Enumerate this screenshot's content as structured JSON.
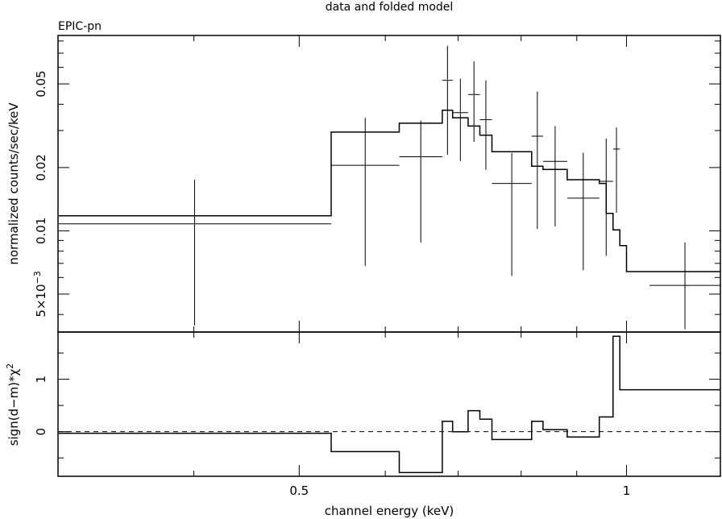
{
  "chart_data": [
    {
      "type": "scatter",
      "title": "data and folded model",
      "subtitle": "EPIC-pn",
      "ylabel": "normalized counts/sec/keV",
      "ylog": true,
      "ylim": [
        0.0033,
        0.085
      ],
      "yticks": [
        {
          "value": 0.05,
          "label": "0.05"
        },
        {
          "value": 0.02,
          "label": "0.02"
        },
        {
          "value": 0.01,
          "label": "0.01"
        },
        {
          "value": 0.005,
          "label": "5×10",
          "exp": "−3"
        }
      ],
      "data_points": [
        {
          "xlo": 0.3,
          "xhi": 0.535,
          "y": 0.0108,
          "ylo": 0.00355,
          "yhi": 0.0175
        },
        {
          "xlo": 0.535,
          "xhi": 0.618,
          "y": 0.0205,
          "ylo": 0.0068,
          "yhi": 0.0345
        },
        {
          "xlo": 0.618,
          "xhi": 0.677,
          "y": 0.0225,
          "ylo": 0.0088,
          "yhi": 0.0335
        },
        {
          "xlo": 0.677,
          "xhi": 0.692,
          "y": 0.052,
          "ylo": 0.023,
          "yhi": 0.076
        },
        {
          "xlo": 0.692,
          "xhi": 0.715,
          "y": 0.0365,
          "ylo": 0.0215,
          "yhi": 0.053
        },
        {
          "xlo": 0.715,
          "xhi": 0.733,
          "y": 0.0445,
          "ylo": 0.0265,
          "yhi": 0.064
        },
        {
          "xlo": 0.733,
          "xhi": 0.752,
          "y": 0.0338,
          "ylo": 0.0195,
          "yhi": 0.052
        },
        {
          "xlo": 0.752,
          "xhi": 0.818,
          "y": 0.0168,
          "ylo": 0.0061,
          "yhi": 0.0235
        },
        {
          "xlo": 0.818,
          "xhi": 0.838,
          "y": 0.0282,
          "ylo": 0.0102,
          "yhi": 0.046
        },
        {
          "xlo": 0.838,
          "xhi": 0.882,
          "y": 0.0214,
          "ylo": 0.0105,
          "yhi": 0.0315
        },
        {
          "xlo": 0.882,
          "xhi": 0.944,
          "y": 0.0143,
          "ylo": 0.0065,
          "yhi": 0.0235
        },
        {
          "xlo": 0.944,
          "xhi": 0.972,
          "y": 0.0172,
          "ylo": 0.0076,
          "yhi": 0.0275
        },
        {
          "xlo": 0.972,
          "xhi": 0.986,
          "y": 0.0245,
          "ylo": 0.0122,
          "yhi": 0.031
        },
        {
          "xlo": 1.05,
          "xhi": 1.22,
          "y": 0.0055,
          "ylo": 0.0034,
          "yhi": 0.0088
        }
      ],
      "model_step": [
        [
          0.3,
          0.0118
        ],
        [
          0.535,
          0.0295
        ],
        [
          0.618,
          0.0325
        ],
        [
          0.677,
          0.0375
        ],
        [
          0.692,
          0.0345
        ],
        [
          0.715,
          0.0315
        ],
        [
          0.733,
          0.0285
        ],
        [
          0.752,
          0.0238
        ],
        [
          0.818,
          0.0203
        ],
        [
          0.838,
          0.0196
        ],
        [
          0.882,
          0.0175
        ],
        [
          0.944,
          0.0168
        ],
        [
          0.958,
          0.0121
        ],
        [
          0.972,
          0.0101
        ],
        [
          0.986,
          0.0085
        ],
        [
          1.0,
          0.0064
        ],
        [
          1.22,
          0.0064
        ]
      ],
      "model_end": 1.22
    },
    {
      "type": "line",
      "xlabel": "channel energy (keV)",
      "ylabel": "sign(d−m)*χ",
      "ylabel_sup": "2",
      "xlog": true,
      "xlim": [
        0.3,
        1.22
      ],
      "ylim": [
        -0.85,
        1.9
      ],
      "xticks": [
        {
          "value": 0.5,
          "label": "0.5"
        },
        {
          "value": 1.0,
          "label": "1"
        }
      ],
      "yticks": [
        {
          "value": 0,
          "label": "0"
        },
        {
          "value": 1,
          "label": "1"
        }
      ],
      "zero_line": 0,
      "residual_step": [
        [
          0.3,
          -0.03
        ],
        [
          0.535,
          -0.38
        ],
        [
          0.618,
          -0.78
        ],
        [
          0.677,
          0.2
        ],
        [
          0.692,
          0.0
        ],
        [
          0.715,
          0.4
        ],
        [
          0.733,
          0.24
        ],
        [
          0.752,
          -0.15
        ],
        [
          0.818,
          0.2
        ],
        [
          0.838,
          0.04
        ],
        [
          0.882,
          -0.1
        ],
        [
          0.944,
          0.28
        ],
        [
          0.972,
          1.82
        ],
        [
          0.986,
          0.8
        ],
        [
          1.22,
          0.8
        ]
      ]
    }
  ]
}
